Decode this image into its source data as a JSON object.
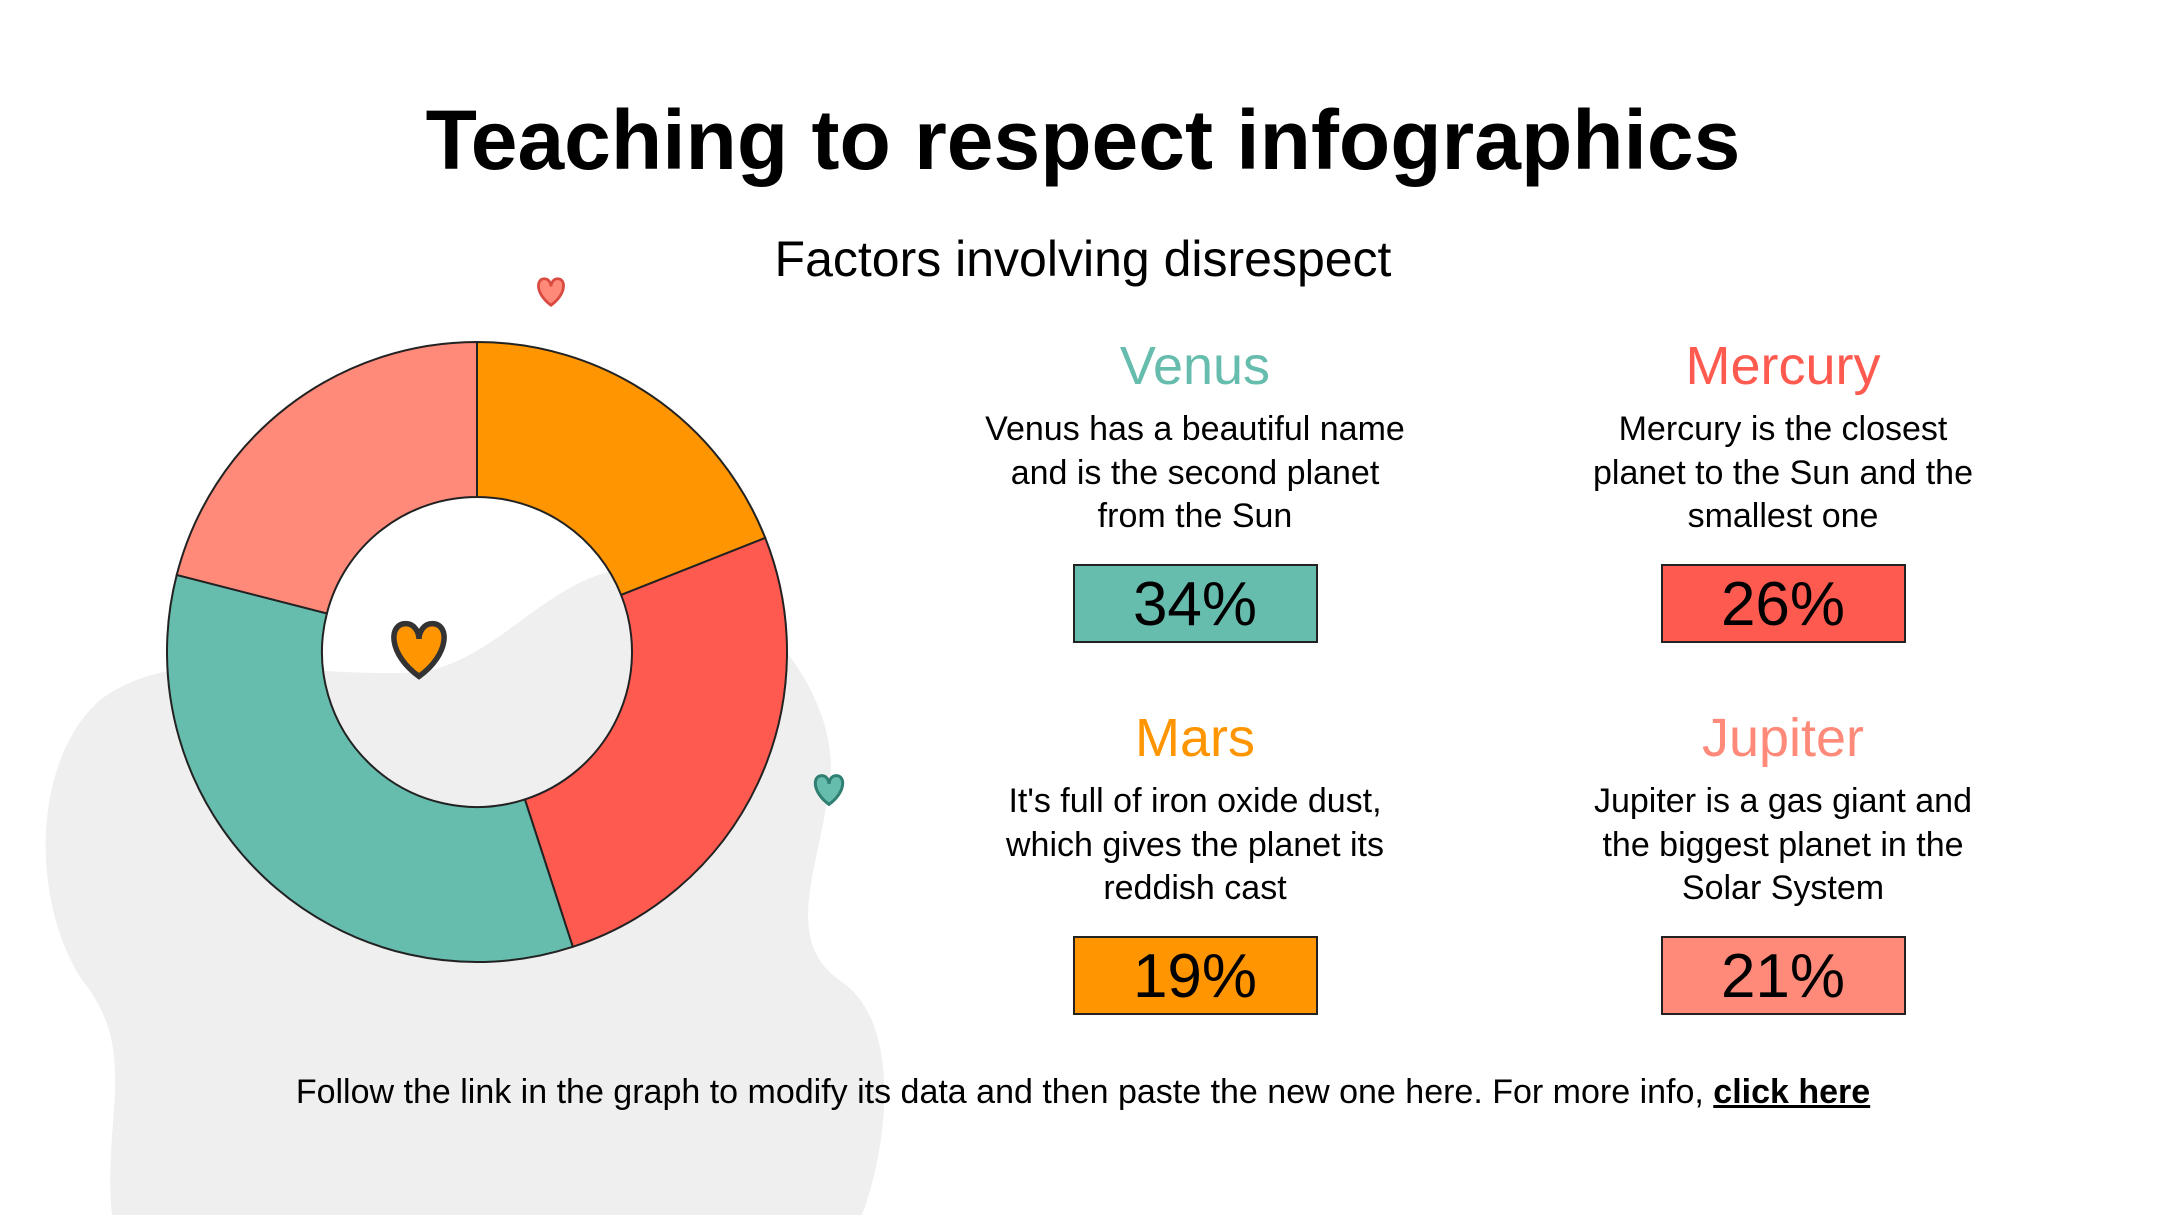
{
  "title": "Teaching to respect infographics",
  "chart_data": {
    "type": "pie",
    "subtitle": "Factors involving disrespect",
    "categories": [
      "Mars",
      "Mercury",
      "Venus",
      "Jupiter"
    ],
    "values": [
      19,
      26,
      34,
      21
    ],
    "value_labels": [
      "19%",
      "26%",
      "34%",
      "21%"
    ],
    "colors": [
      "#ff9500",
      "#ff5a50",
      "#66bcad",
      "#ff8a7a"
    ],
    "descriptions": [
      "It's full of iron oxide dust, which gives the planet its reddish cast",
      "Mercury is the closest planet to the Sun and the smallest one",
      "Venus has a beautiful name and is the second planet from the Sun",
      "Jupiter is a gas giant and the biggest planet in the Solar System"
    ]
  },
  "footer": {
    "text": "Follow the link in the graph to modify its data and then paste the new one here. For more info,",
    "link": "click here"
  }
}
